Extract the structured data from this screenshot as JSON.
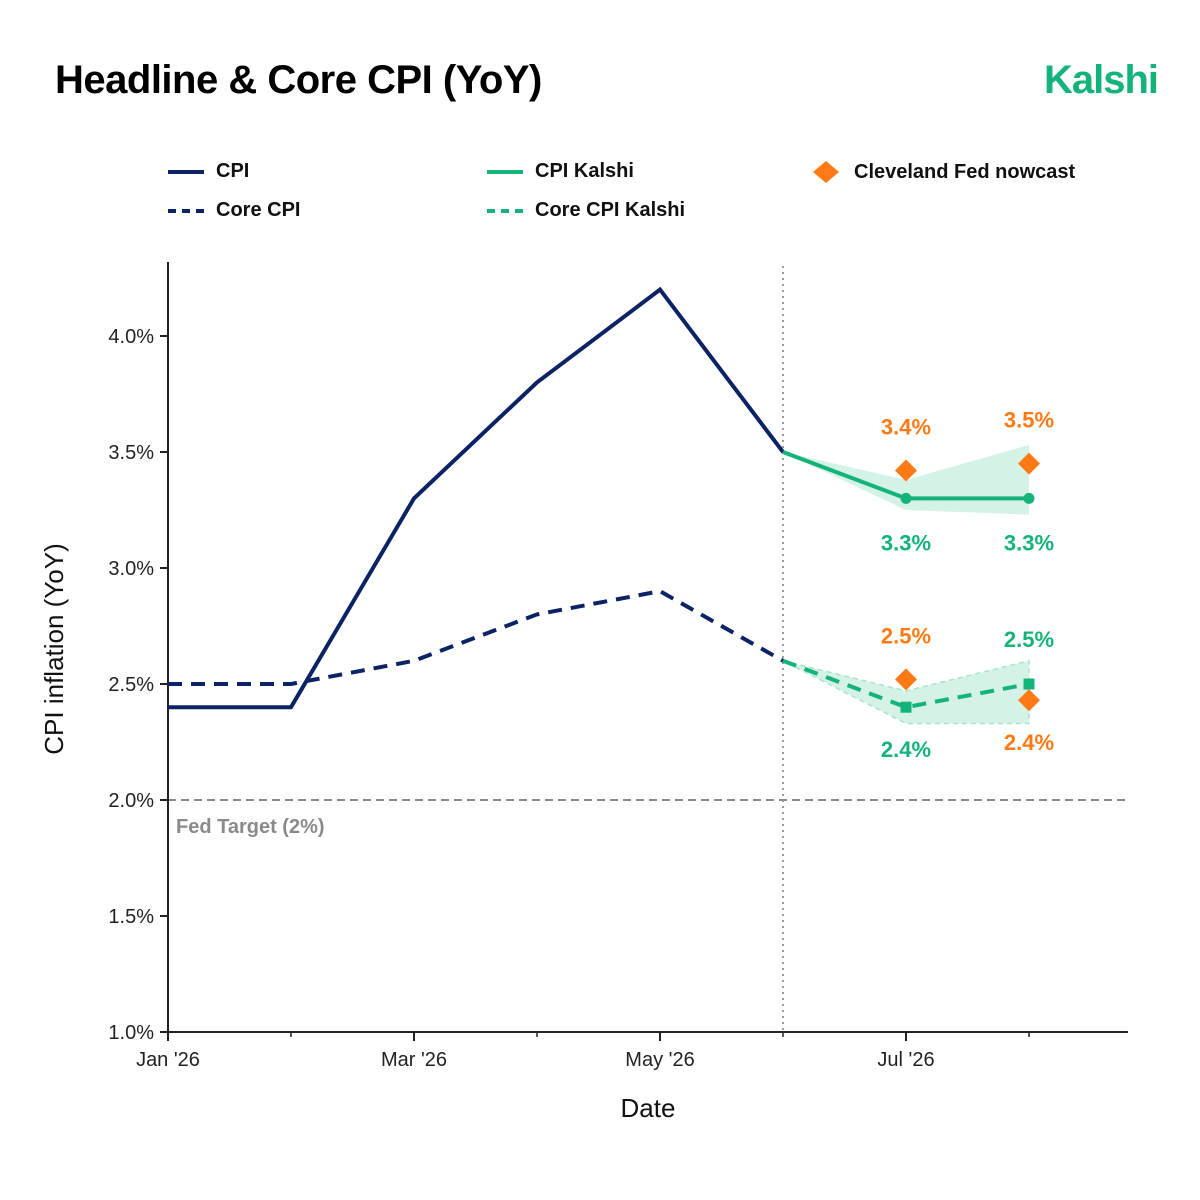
{
  "header": {
    "title": "Headline & Core CPI (YoY)",
    "logo": "Kalshi"
  },
  "colors": {
    "navy": "#0b2265",
    "green": "#14b37a",
    "green_band": "#d4f2e6",
    "orange": "#ff7a14",
    "target_gray": "#8a8a8a",
    "title": "#000000"
  },
  "legend": {
    "cpi": "CPI",
    "core_cpi": "Core CPI",
    "cpi_kalshi": "CPI Kalshi",
    "core_cpi_kalshi": "Core CPI Kalshi",
    "cleveland": "Cleveland Fed nowcast"
  },
  "chart_data": {
    "type": "line",
    "xlabel": "Date",
    "ylabel": "CPI inflation (YoY)",
    "x_ticks": [
      "Jan '26",
      "Mar '26",
      "May '26",
      "Jul '26"
    ],
    "y_ticks": [
      "1.0%",
      "1.5%",
      "2.0%",
      "2.5%",
      "3.0%",
      "3.5%",
      "4.0%"
    ],
    "ylim": [
      1.0,
      4.3
    ],
    "xlim": [
      "2026-01",
      "2026-09"
    ],
    "grid": false,
    "legend_position": "top",
    "series": [
      {
        "name": "CPI",
        "style": "solid",
        "x": [
          "2026-01",
          "2026-02",
          "2026-03",
          "2026-04",
          "2026-05",
          "2026-06"
        ],
        "y": [
          2.4,
          2.4,
          3.3,
          3.8,
          4.2,
          3.5
        ]
      },
      {
        "name": "Core CPI",
        "style": "dashed",
        "x": [
          "2026-01",
          "2026-02",
          "2026-03",
          "2026-04",
          "2026-05",
          "2026-06"
        ],
        "y": [
          2.5,
          2.5,
          2.6,
          2.8,
          2.9,
          2.6
        ]
      },
      {
        "name": "CPI Kalshi",
        "style": "solid",
        "x": [
          "2026-06",
          "2026-07",
          "2026-08"
        ],
        "y": [
          3.5,
          3.3,
          3.3
        ],
        "band_low": [
          3.5,
          3.25,
          3.23
        ],
        "band_high": [
          3.5,
          3.38,
          3.53
        ],
        "labels": [
          "",
          "3.3%",
          "3.3%"
        ]
      },
      {
        "name": "Core CPI Kalshi",
        "style": "dashed",
        "x": [
          "2026-06",
          "2026-07",
          "2026-08"
        ],
        "y": [
          2.6,
          2.4,
          2.5
        ],
        "band_low": [
          2.6,
          2.33,
          2.33
        ],
        "band_high": [
          2.6,
          2.47,
          2.6
        ],
        "labels": [
          "",
          "2.4%",
          "2.5%"
        ]
      },
      {
        "name": "Cleveland Fed nowcast",
        "style": "marker",
        "x": [
          "2026-07",
          "2026-08",
          "2026-07",
          "2026-08"
        ],
        "y": [
          3.42,
          3.45,
          2.52,
          2.43
        ],
        "labels": [
          "3.4%",
          "3.5%",
          "2.5%",
          "2.4%"
        ]
      }
    ],
    "annotations": {
      "fed_target": {
        "y": 2.0,
        "label": "Fed Target (2%)"
      },
      "forecast_start": "2026-06"
    }
  }
}
